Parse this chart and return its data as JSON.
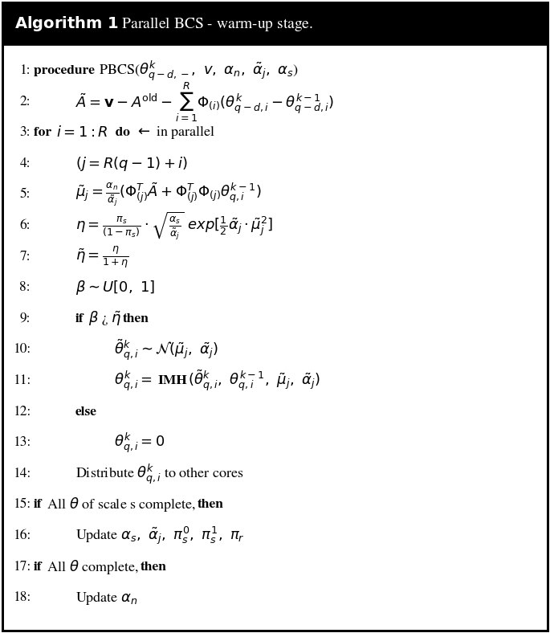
{
  "background_color": "#ffffff",
  "border_color": "#000000",
  "header_bg": "#000000",
  "header_text_color": "#ffffff",
  "lines": [
    {
      "num": "1:",
      "indent": 0,
      "parts": [
        {
          "text": "procedure ",
          "style": "bold"
        },
        {
          "text": "PBCS($\\theta^{k}_{q-d,-},\\ v,\\ \\alpha_n,\\ \\tilde{\\alpha}_j,\\ \\alpha_s$)",
          "style": "math_inline"
        }
      ]
    },
    {
      "num": "2:",
      "indent": 1,
      "parts": [
        {
          "text": "$\\tilde{A} = \\mathbf{v} - A^{\\mathrm{old}} - \\sum_{i=1}^{R}\\Phi_{(i)}(\\theta^{k}_{q-d,i} - \\theta^{k-1}_{q-d,i})$",
          "style": "math"
        }
      ]
    },
    {
      "num": "3:",
      "indent": 0,
      "parts": [
        {
          "text": "for ",
          "style": "bold"
        },
        {
          "text": "$i = 1 : R$",
          "style": "math"
        },
        {
          "text": "  do",
          "style": "bold"
        },
        {
          "text": " $\\leftarrow$ in parallel",
          "style": "math_inline"
        }
      ]
    },
    {
      "num": "4:",
      "indent": 1,
      "parts": [
        {
          "text": "$(j = R(q-1)+i)$",
          "style": "math"
        }
      ]
    },
    {
      "num": "5:",
      "indent": 1,
      "parts": [
        {
          "text": "$\\tilde{\\mu}_j = \\frac{\\alpha_n}{\\tilde{\\alpha}_j}(\\Phi^{T}_{(j)}\\tilde{A} + \\Phi^{T}_{(j)}\\Phi_{(j)}\\theta^{k-1}_{q,i})$",
          "style": "math"
        }
      ]
    },
    {
      "num": "6:",
      "indent": 1,
      "parts": [
        {
          "text": "$\\eta = \\frac{\\pi_s}{(1-\\pi_s)} \\cdot \\sqrt{\\frac{\\alpha_s}{\\tilde{\\alpha}_j}}\\ exp[\\frac{1}{2}\\tilde{\\alpha}_j \\cdot \\tilde{\\mu}^2_j]$",
          "style": "math"
        }
      ]
    },
    {
      "num": "7:",
      "indent": 1,
      "parts": [
        {
          "text": "$\\tilde{\\eta} = \\frac{\\eta}{1+\\eta}$",
          "style": "math"
        }
      ]
    },
    {
      "num": "8:",
      "indent": 1,
      "parts": [
        {
          "text": "$\\beta \\sim U[0,\\ 1]$",
          "style": "math"
        }
      ]
    },
    {
      "num": "9:",
      "indent": 1,
      "parts": [
        {
          "text": "if",
          "style": "bold"
        },
        {
          "text": " $\\beta$ ¿ $\\tilde{\\eta}$ ",
          "style": "math_inline"
        },
        {
          "text": "then",
          "style": "bold"
        }
      ]
    },
    {
      "num": "10:",
      "indent": 2,
      "parts": [
        {
          "text": "$\\tilde{\\theta}^{k}_{q,i} \\sim \\mathcal{N}(\\tilde{\\mu}_j,\\ \\tilde{\\alpha}_j)$",
          "style": "math"
        }
      ]
    },
    {
      "num": "11:",
      "indent": 2,
      "parts": [
        {
          "text": "$\\theta^{k}_{q,i} = $ ",
          "style": "math"
        },
        {
          "text": "IMH",
          "style": "bold"
        },
        {
          "text": "$(\\tilde{\\theta}^{k}_{q,i},\\ \\theta^{k-1}_{q,i},\\ \\tilde{\\mu}_j,\\ \\tilde{\\alpha}_j)$",
          "style": "math"
        }
      ]
    },
    {
      "num": "12:",
      "indent": 1,
      "parts": [
        {
          "text": "else",
          "style": "bold"
        }
      ]
    },
    {
      "num": "13:",
      "indent": 2,
      "parts": [
        {
          "text": "$\\theta^{k}_{q,i} = 0$",
          "style": "math"
        }
      ]
    },
    {
      "num": "14:",
      "indent": 1,
      "parts": [
        {
          "text": "Distribute $\\theta^{k}_{q,i}$ to other cores",
          "style": "math_inline"
        }
      ]
    },
    {
      "num": "15:",
      "indent": 0,
      "parts": [
        {
          "text": "if",
          "style": "bold"
        },
        {
          "text": " All $\\theta$ of scale s complete, ",
          "style": "math_inline"
        },
        {
          "text": "then",
          "style": "bold"
        }
      ]
    },
    {
      "num": "16:",
      "indent": 1,
      "parts": [
        {
          "text": "Update $\\alpha_s,\\ \\tilde{\\alpha}_j,\\ \\pi^{0}_{s},\\ \\pi^{1}_{s},\\ \\pi_r$",
          "style": "math_inline"
        }
      ]
    },
    {
      "num": "17:",
      "indent": 0,
      "parts": [
        {
          "text": "if",
          "style": "bold"
        },
        {
          "text": " All $\\theta$ complete, ",
          "style": "math_inline"
        },
        {
          "text": "then",
          "style": "bold"
        }
      ]
    },
    {
      "num": "18:",
      "indent": 1,
      "parts": [
        {
          "text": "Update $\\alpha_n$",
          "style": "math_inline"
        }
      ]
    }
  ]
}
